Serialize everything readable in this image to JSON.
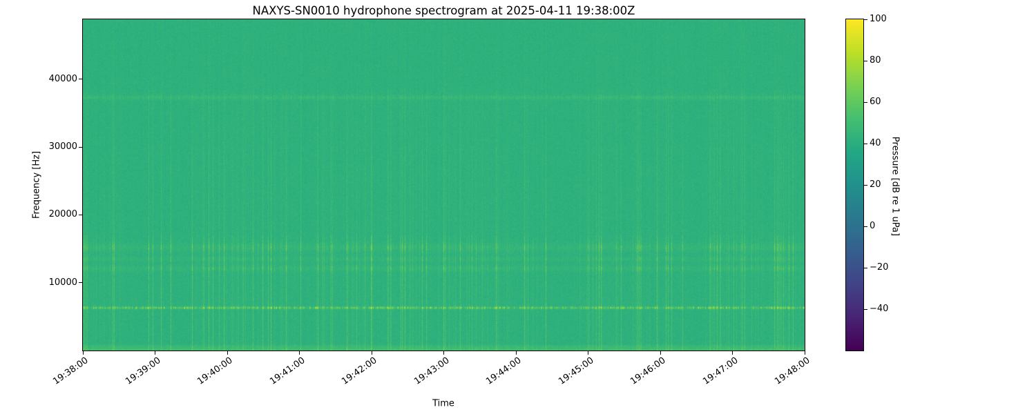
{
  "chart_data": {
    "type": "heatmap",
    "subtype": "spectrogram",
    "title": "NAXYS-SN0010 hydrophone spectrogram at 2025-04-11 19:38:00Z",
    "xlabel": "Time",
    "ylabel": "Frequency [Hz]",
    "x_tick_labels": [
      "19:38:00",
      "19:39:00",
      "19:40:00",
      "19:41:00",
      "19:42:00",
      "19:43:00",
      "19:44:00",
      "19:45:00",
      "19:46:00",
      "19:47:00",
      "19:48:00"
    ],
    "y_tick_values": [
      10000,
      20000,
      30000,
      40000
    ],
    "freq_range_hz": [
      0,
      48828
    ],
    "time_start": "19:38:00",
    "time_end": "19:48:00",
    "colormap": "viridis",
    "grid": false,
    "legend": false,
    "colorbar": {
      "label": "Pressure [dB re 1 uPa]",
      "vmin": -60,
      "vmax": 100,
      "tick_values": [
        100,
        80,
        60,
        40,
        20,
        0,
        -20,
        -40
      ],
      "tick_labels": [
        "100",
        "80",
        "60",
        "40",
        "20",
        "0",
        "−20",
        "−40"
      ]
    },
    "background_level_db": 42,
    "noise_db": 3,
    "features": [
      {
        "kind": "broadband_pulse_striping",
        "max_boost_db": 14,
        "strong_below_hz": 17000,
        "description": "irregular vertical striping from repeated broadband transients across the whole record"
      },
      {
        "kind": "tonal_band",
        "freq_hz": 6300,
        "width_hz": 120,
        "steady_boost_db": 5,
        "pulse_boost_db": 40,
        "pattern": "dashed",
        "description": "bright dashed tonal line"
      },
      {
        "kind": "tonal_band",
        "freq_hz": 12100,
        "width_hz": 280,
        "steady_boost_db": 2.5,
        "pulse_boost_db": 15,
        "pattern": "pulsed"
      },
      {
        "kind": "tonal_band",
        "freq_hz": 13500,
        "width_hz": 230,
        "steady_boost_db": 2,
        "pulse_boost_db": 12,
        "pattern": "pulsed"
      },
      {
        "kind": "tonal_band",
        "freq_hz": 15200,
        "width_hz": 420,
        "steady_boost_db": 2.5,
        "pulse_boost_db": 17,
        "pattern": "pulsed"
      },
      {
        "kind": "tonal_band",
        "freq_hz": 37300,
        "width_hz": 220,
        "steady_boost_db": 2.5,
        "pulse_boost_db": 6,
        "pattern": "dashed",
        "description": "faint dashed high-frequency line"
      },
      {
        "kind": "low_frequency_band",
        "freq_max_hz": 900,
        "boost_db": 10,
        "description": "brighter band along the bottom edge"
      }
    ]
  }
}
